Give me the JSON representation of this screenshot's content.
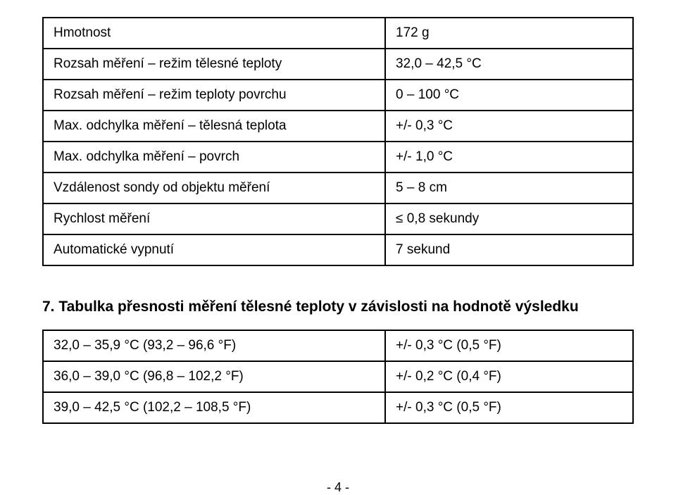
{
  "specs_table": {
    "rows": [
      {
        "label": "Hmotnost",
        "value": "172 g"
      },
      {
        "label": "Rozsah měření – režim tělesné teploty",
        "value": "32,0 – 42,5 °C"
      },
      {
        "label": "Rozsah měření – režim teploty povrchu",
        "value": "0 – 100 °C"
      },
      {
        "label": "Max. odchylka měření – tělesná teplota",
        "value": "+/- 0,3 °C"
      },
      {
        "label": "Max. odchylka měření – povrch",
        "value": "+/- 1,0 °C"
      },
      {
        "label": "Vzdálenost sondy od objektu měření",
        "value": "5 – 8 cm"
      },
      {
        "label": "Rychlost měření",
        "value": "≤ 0,8 sekundy"
      },
      {
        "label": "Automatické vypnutí",
        "value": "7 sekund"
      }
    ]
  },
  "section_heading": "7. Tabulka přesnosti měření tělesné teploty v závislosti na hodnotě výsledku",
  "accuracy_table": {
    "rows": [
      {
        "range": "32,0 – 35,9 °C (93,2 – 96,6 °F)",
        "tolerance": "+/- 0,3 °C (0,5 °F)"
      },
      {
        "range": "36,0 – 39,0 °C (96,8 – 102,2 °F)",
        "tolerance": "+/- 0,2 °C (0,4 °F)"
      },
      {
        "range": "39,0 – 42,5 °C (102,2 – 108,5 °F)",
        "tolerance": "+/- 0,3 °C (0,5 °F)"
      }
    ]
  },
  "page_number": "- 4 -"
}
